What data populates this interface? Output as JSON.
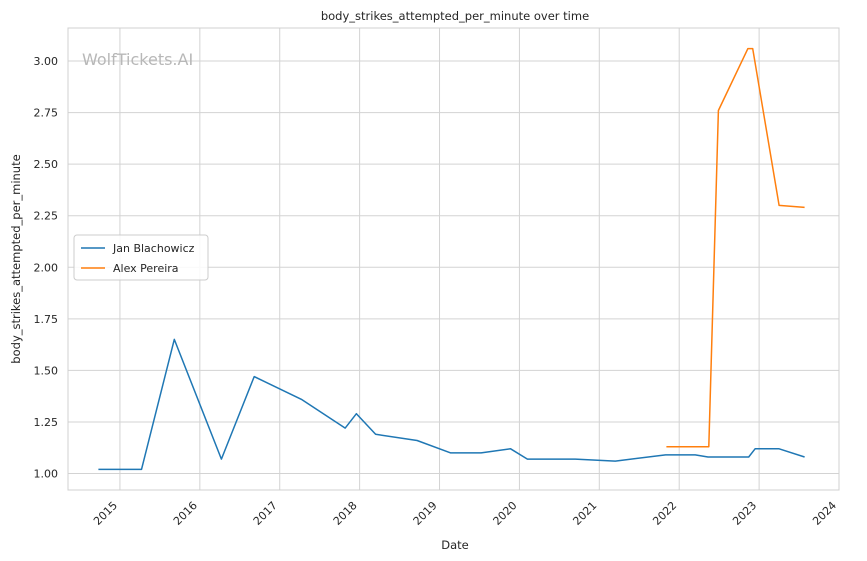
{
  "chart_data": {
    "type": "line",
    "title": "body_strikes_attempted_per_minute over time",
    "xlabel": "Date",
    "ylabel": "body_strikes_attempted_per_minute",
    "watermark": "WolfTickets.AI",
    "xlim": [
      2014.35,
      2024.0
    ],
    "ylim": [
      0.92,
      3.16
    ],
    "x_ticks": [
      2015,
      2016,
      2017,
      2018,
      2019,
      2020,
      2021,
      2022,
      2023,
      2024
    ],
    "y_ticks": [
      1.0,
      1.25,
      1.5,
      1.75,
      2.0,
      2.25,
      2.5,
      2.75,
      3.0
    ],
    "y_tick_labels": [
      "1.00",
      "1.25",
      "1.50",
      "1.75",
      "2.00",
      "2.25",
      "2.50",
      "2.75",
      "3.00"
    ],
    "grid": true,
    "legend_position": "center-left",
    "series": [
      {
        "name": "Jan Blachowicz",
        "color": "#1f77b4",
        "x": [
          2014.73,
          2015.27,
          2015.68,
          2016.27,
          2016.68,
          2017.27,
          2017.82,
          2017.96,
          2018.2,
          2018.72,
          2019.14,
          2019.52,
          2019.89,
          2020.1,
          2020.7,
          2021.2,
          2021.83,
          2022.2,
          2022.36,
          2022.87,
          2022.95,
          2023.25,
          2023.57
        ],
        "y": [
          1.02,
          1.02,
          1.65,
          1.07,
          1.47,
          1.36,
          1.22,
          1.29,
          1.19,
          1.16,
          1.1,
          1.1,
          1.12,
          1.07,
          1.07,
          1.06,
          1.09,
          1.09,
          1.08,
          1.08,
          1.12,
          1.12,
          1.08
        ]
      },
      {
        "name": "Alex Pereira",
        "color": "#ff7f0e",
        "x": [
          2021.84,
          2022.37,
          2022.49,
          2022.86,
          2022.92,
          2023.25,
          2023.57
        ],
        "y": [
          1.13,
          1.13,
          2.76,
          3.06,
          3.06,
          2.3,
          2.29
        ]
      }
    ]
  }
}
